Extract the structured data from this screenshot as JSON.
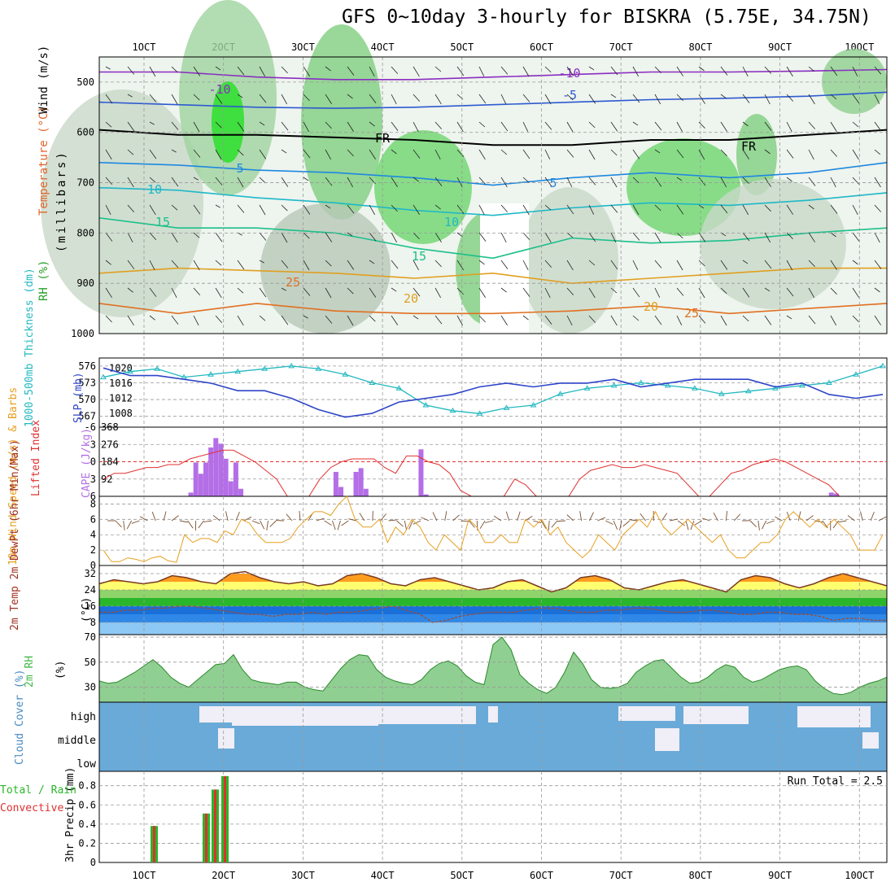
{
  "title": "GFS 0~10day 3-hourly for BISKRA (5.75E, 34.75N)",
  "colors": {
    "rh": "#37b52a",
    "temp": "#e0642a",
    "wind": "#6a4aa0",
    "thick": "#22b8c0",
    "slp": "#2f45c8",
    "cape": "#b46ee6",
    "li": "#e03030",
    "spd": "#e7a020",
    "rh2m": "#44b84a",
    "cloud": "#6aaad8",
    "precip": "#e03030"
  },
  "chart_data": [
    {
      "type": "heatmap",
      "name": "upper_air",
      "x": [
        "1OCT",
        "2OCT",
        "3OCT",
        "4OCT",
        "5OCT",
        "6OCT",
        "7OCT",
        "8OCT",
        "9OCT",
        "10OCT"
      ],
      "ylabel_parts": [
        "RH (%)",
        "Temperature (°C)",
        "Wind (m/s)"
      ],
      "ylabel_unit": "(millibars)",
      "yticks": [
        500,
        600,
        700,
        800,
        900,
        1000
      ],
      "contour_labels": [
        "-10",
        "-5",
        "FR",
        "5",
        "10",
        "15",
        "20",
        "25"
      ],
      "isotherms": [
        {
          "label": "-10",
          "y": [
            480,
            480,
            490,
            495,
            495,
            490,
            485,
            480,
            480,
            478,
            475
          ]
        },
        {
          "label": "-5",
          "y": [
            540,
            545,
            550,
            552,
            550,
            545,
            540,
            535,
            532,
            528,
            520
          ]
        },
        {
          "label": "FR",
          "y": [
            595,
            605,
            605,
            610,
            615,
            625,
            625,
            615,
            615,
            605,
            595
          ]
        },
        {
          "label": "5",
          "y": [
            660,
            665,
            675,
            680,
            690,
            705,
            690,
            680,
            690,
            680,
            660
          ]
        },
        {
          "label": "10",
          "y": [
            710,
            715,
            730,
            740,
            755,
            765,
            750,
            740,
            745,
            735,
            720
          ]
        },
        {
          "label": "15",
          "y": [
            770,
            790,
            790,
            800,
            830,
            850,
            810,
            820,
            815,
            800,
            790
          ]
        },
        {
          "label": "20",
          "y": [
            880,
            870,
            875,
            880,
            890,
            880,
            900,
            890,
            880,
            870,
            870
          ]
        },
        {
          "label": "25",
          "y": [
            940,
            960,
            940,
            955,
            960,
            960,
            955,
            945,
            960,
            950,
            940
          ]
        }
      ]
    },
    {
      "type": "line",
      "name": "thickness_slp",
      "ylabel": "1000-500mb Thickness (dm)",
      "ylabel2": "SLP (mb)",
      "yticks_left": [
        567,
        570,
        573,
        576
      ],
      "yticks_right": [
        1008,
        1012,
        1016,
        1020
      ],
      "series": [
        {
          "name": "Thickness",
          "values": [
            574,
            575,
            575.5,
            574,
            574.5,
            575,
            575.5,
            576,
            575.5,
            574.5,
            573,
            572,
            569,
            568,
            567.5,
            568.5,
            569,
            571,
            572,
            572.5,
            573,
            572.5,
            572,
            571,
            571.5,
            572,
            572.5,
            573,
            574.5,
            576
          ]
        },
        {
          "name": "SLP",
          "values": [
            1020,
            1018,
            1018,
            1017,
            1016,
            1014,
            1014,
            1012,
            1009,
            1007,
            1008,
            1011,
            1012,
            1013,
            1015,
            1016,
            1015,
            1016,
            1016,
            1017,
            1015,
            1016,
            1017,
            1017,
            1017,
            1015,
            1016,
            1013,
            1012,
            1013
          ]
        }
      ]
    },
    {
      "type": "bar",
      "name": "cape_li",
      "ylabel": "Lifted Index",
      "ylabel2": "CAPE (J/kg)",
      "yticks_left": [
        -6,
        -3,
        0,
        3,
        6
      ],
      "yticks_right": [
        92,
        184,
        276,
        368
      ],
      "series": [
        {
          "name": "Lifted Index",
          "values": [
            3,
            2,
            2,
            1.5,
            1,
            1,
            0.5,
            0.5,
            -0.5,
            -1,
            -1.5,
            -2,
            -2,
            -1,
            0,
            1.5,
            3,
            6,
            6,
            6,
            3,
            1,
            0,
            -0.5,
            -0.5,
            -0.5,
            1,
            2,
            -1,
            -1,
            0,
            0.5,
            2,
            5,
            6,
            6,
            6,
            6,
            3,
            4,
            6,
            6,
            6,
            6,
            3,
            1.5,
            1,
            0.5,
            1,
            1,
            0.5,
            1,
            1.5,
            2,
            4,
            6,
            6,
            4,
            2,
            1.5,
            0.5,
            0,
            -0.5,
            0,
            1,
            2,
            3,
            4,
            6,
            6,
            6,
            6,
            6
          ]
        },
        {
          "name": "CAPE",
          "values": [
            0,
            0,
            0,
            0,
            0,
            0,
            0,
            0,
            0,
            0,
            0,
            0,
            0,
            0,
            0,
            0,
            0,
            20,
            180,
            120,
            180,
            260,
            310,
            280,
            200,
            80,
            180,
            40,
            0,
            0,
            0,
            0,
            0,
            0,
            0,
            0,
            0,
            0,
            0,
            0,
            0,
            0,
            0,
            0,
            0,
            0,
            130,
            50,
            0,
            0,
            130,
            150,
            40,
            0,
            0,
            0,
            0,
            0,
            0,
            0,
            0,
            0,
            0,
            250,
            10,
            0,
            0,
            0,
            0,
            0,
            0,
            0,
            0,
            0,
            0,
            0,
            0,
            0,
            0,
            0,
            0,
            0,
            0,
            0,
            0,
            0,
            0,
            0,
            0,
            0,
            0,
            0,
            0,
            0,
            0,
            0,
            0,
            0,
            0,
            0,
            0,
            0,
            0,
            0,
            0,
            0,
            0,
            0,
            0,
            0,
            0,
            0,
            0,
            0,
            0,
            0,
            0,
            0,
            0,
            0,
            0,
            0,
            0,
            0,
            0,
            0,
            0,
            0,
            0,
            0,
            0,
            0,
            0,
            0,
            0,
            0,
            0,
            0,
            0,
            0,
            0,
            0,
            0,
            0,
            0,
            20,
            15,
            0,
            0,
            0,
            0,
            0,
            0,
            0,
            0,
            0,
            0,
            0,
            0,
            0,
            0,
            0,
            0,
            0,
            0,
            0,
            0,
            0,
            0,
            0,
            0,
            0,
            0,
            0,
            0,
            0,
            0,
            0
          ]
        }
      ]
    },
    {
      "type": "line",
      "name": "wind10m",
      "ylabel": "10m Wind Speed (m/s) & Barbs",
      "yticks": [
        0,
        2,
        4,
        6,
        8
      ],
      "series": [
        {
          "name": "Speed",
          "values": [
            2,
            0.5,
            0.5,
            1,
            0.8,
            0.5,
            1,
            1.2,
            0.6,
            0.4,
            4,
            3,
            3.5,
            3.5,
            3,
            4.5,
            4,
            6,
            5.5,
            4,
            3,
            3,
            3,
            3.5,
            5,
            6,
            7,
            7,
            6.5,
            8,
            9,
            6,
            5,
            5,
            6,
            3,
            5,
            4,
            6,
            5,
            3,
            2,
            4,
            3,
            2,
            6,
            5,
            3,
            3,
            4,
            3,
            3,
            6,
            5,
            6,
            4,
            5,
            3,
            2,
            1,
            2,
            4,
            3,
            2,
            4,
            5,
            6,
            5,
            7,
            5,
            4,
            5,
            6,
            5,
            4,
            3,
            4,
            2,
            1,
            1,
            2,
            3,
            3,
            4,
            6,
            7,
            6,
            5,
            6,
            5,
            6,
            5,
            4,
            2,
            2,
            2,
            4
          ]
        }
      ]
    },
    {
      "type": "area",
      "name": "temp2m",
      "ylabel": "2m Temp 2m DewPt (6hr Min/Max)",
      "yunit": "(°C)",
      "yticks": [
        8,
        16,
        24,
        32
      ],
      "series": [
        {
          "name": "Temp",
          "values": [
            27,
            29,
            28,
            27,
            28,
            31,
            30,
            28,
            27,
            32,
            33,
            30,
            28,
            27,
            28,
            26,
            27,
            31,
            32,
            30,
            27,
            26,
            29,
            30,
            28,
            26,
            24,
            25,
            28,
            29,
            26,
            23,
            25,
            30,
            31,
            29,
            25,
            24,
            26,
            28,
            29,
            27,
            25,
            23,
            29,
            31,
            30,
            27,
            25,
            27,
            30,
            32,
            30,
            28,
            26
          ]
        },
        {
          "name": "DewPt",
          "values": [
            13,
            13,
            14,
            14,
            15,
            15,
            16,
            16,
            15,
            14,
            13,
            12,
            12,
            11,
            12,
            12,
            13,
            12,
            13,
            13,
            14,
            15,
            16,
            14,
            12,
            8,
            9,
            11,
            12,
            13,
            13,
            13,
            14,
            15,
            15,
            14,
            13,
            13,
            14,
            14,
            15,
            15,
            14,
            13,
            13,
            14,
            14,
            13,
            12,
            12,
            13,
            13,
            12,
            12,
            11,
            9,
            10,
            10,
            9,
            9
          ]
        }
      ]
    },
    {
      "type": "area",
      "name": "rh2m",
      "ylabel": "2m RH",
      "yunit": "(%)",
      "yticks": [
        30,
        50,
        70
      ],
      "series": [
        {
          "name": "RH",
          "values": [
            35,
            33,
            34,
            38,
            42,
            47,
            52,
            46,
            38,
            33,
            30,
            36,
            42,
            48,
            49,
            56,
            44,
            36,
            34,
            33,
            32,
            34,
            34,
            30,
            28,
            27,
            36,
            45,
            52,
            56,
            55,
            44,
            38,
            35,
            33,
            32,
            36,
            44,
            49,
            51,
            47,
            39,
            34,
            32,
            64,
            70,
            60,
            40,
            33,
            28,
            25,
            30,
            42,
            58,
            49,
            36,
            30,
            29,
            30,
            33,
            42,
            47,
            51,
            52,
            45,
            38,
            33,
            34,
            38,
            44,
            48,
            46,
            38,
            34,
            36,
            40,
            44,
            46,
            47,
            44,
            35,
            29,
            25,
            24,
            26,
            30,
            33,
            35,
            38
          ]
        }
      ]
    },
    {
      "type": "heatmap",
      "name": "cloud",
      "ylabel": "Cloud Cover (%)",
      "rows": [
        "high",
        "middle",
        "low"
      ]
    },
    {
      "type": "bar",
      "name": "precip",
      "ylabel": "3hr Precip (mm)",
      "ylabel_legend": [
        "Total / Rain",
        "Convective"
      ],
      "yticks": [
        0,
        0.2,
        0.4,
        0.6,
        0.8
      ],
      "annotation": "Run Total = 2.5",
      "series": [
        {
          "name": "Total",
          "values": [
            0.38,
            0,
            0,
            0.51,
            0.76,
            0.9
          ]
        }
      ]
    }
  ],
  "xticks": [
    "1OCT",
    "2OCT",
    "3OCT",
    "4OCT",
    "5OCT",
    "6OCT",
    "7OCT",
    "8OCT",
    "9OCT",
    "10OCT"
  ]
}
